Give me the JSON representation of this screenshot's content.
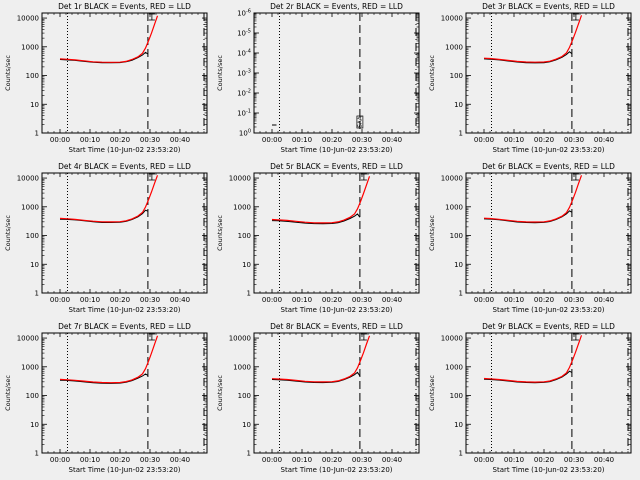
{
  "figure": {
    "background": "#efefef",
    "axis_color": "#000000",
    "events_color": "#000000",
    "lld_color": "#ff0000"
  },
  "chart_data": [
    {
      "type": "line",
      "panel": "det-1r",
      "title": "Det 1r BLACK = Events, RED = LLD",
      "xlabel": "Start Time (10-Jun-02 23:53:20)",
      "ylabel": "Counts/sec",
      "xticks": [
        "00:00",
        "00:10",
        "00:20",
        "00:30",
        "00:40"
      ],
      "yscale": "log",
      "ylim": [
        1,
        15000
      ],
      "yticks": [
        "1",
        "10",
        "100",
        "1000",
        "10000"
      ],
      "dotted_line_min": 2.5,
      "dash_line_min": 29.3,
      "dashdot_line_min": 48,
      "series": [
        {
          "name": "Events",
          "color": "#000000",
          "x": [
            0,
            2,
            5,
            8,
            11,
            14,
            17,
            20,
            22,
            24,
            26,
            27.5,
            28.5,
            29.3
          ],
          "y": [
            360,
            350,
            335,
            310,
            290,
            280,
            278,
            282,
            300,
            340,
            420,
            520,
            640,
            560
          ]
        },
        {
          "name": "LLD",
          "color": "#ff0000",
          "x": [
            0,
            2,
            5,
            8,
            11,
            14,
            17,
            20,
            22,
            24,
            26,
            27.5,
            28.5,
            29.5,
            30.5,
            31.5,
            32.5
          ],
          "y": [
            380,
            370,
            350,
            325,
            300,
            290,
            288,
            292,
            310,
            360,
            450,
            600,
            900,
            1600,
            3000,
            6000,
            12000
          ]
        }
      ]
    },
    {
      "type": "line",
      "panel": "det-2r",
      "title": "Det 2r BLACK = Events, RED = LLD",
      "xlabel": "Start Time (10-Jun-02 23:53:20)",
      "ylabel": "Counts/sec",
      "xticks": [
        "00:00",
        "00:10",
        "00:20",
        "00:30",
        "00:40"
      ],
      "yscale": "log",
      "ylim": [
        1,
        1000000
      ],
      "yticks": [
        "10^0",
        "10^-1",
        "10^-2",
        "10^-3",
        "10^-4",
        "10^-5",
        "10^-6"
      ],
      "dotted_line_min": 2.5,
      "dash_line_min": 29.3,
      "dashdot_line_min": 48,
      "annotations": [
        "SAA"
      ],
      "series": [
        {
          "name": "Events",
          "color": "#000000",
          "x": [
            0,
            1.5
          ],
          "y": [
            2.5,
            2.5
          ]
        }
      ]
    },
    {
      "type": "line",
      "panel": "det-3r",
      "title": "Det 3r BLACK = Events, RED = LLD",
      "xlabel": "Start Time (10-Jun-02 23:53:20)",
      "ylabel": "Counts/sec",
      "xticks": [
        "00:00",
        "00:10",
        "00:20",
        "00:30",
        "00:40"
      ],
      "yscale": "log",
      "ylim": [
        1,
        15000
      ],
      "yticks": [
        "1",
        "10",
        "100",
        "1000",
        "10000"
      ],
      "dotted_line_min": 2.5,
      "dash_line_min": 29.3,
      "dashdot_line_min": 48,
      "series": [
        {
          "name": "Events",
          "color": "#000000",
          "x": [
            0,
            2,
            5,
            8,
            11,
            14,
            17,
            20,
            22,
            24,
            26,
            27.5,
            28.5,
            29.3
          ],
          "y": [
            380,
            370,
            350,
            320,
            295,
            280,
            275,
            280,
            300,
            350,
            430,
            540,
            670,
            580
          ]
        },
        {
          "name": "LLD",
          "color": "#ff0000",
          "x": [
            0,
            2,
            5,
            8,
            11,
            14,
            17,
            20,
            22,
            24,
            26,
            27.5,
            28.5,
            29.5,
            30.5,
            31.5,
            32.5
          ],
          "y": [
            400,
            390,
            365,
            335,
            310,
            295,
            290,
            295,
            315,
            370,
            460,
            620,
            950,
            1700,
            3200,
            6300,
            12500
          ]
        }
      ]
    },
    {
      "type": "line",
      "panel": "det-4r",
      "title": "Det 4r BLACK = Events, RED = LLD",
      "xlabel": "Start Time (10-Jun-02 23:53:20)",
      "ylabel": "Counts/sec",
      "xticks": [
        "00:00",
        "00:10",
        "00:20",
        "00:30",
        "00:40"
      ],
      "yscale": "log",
      "ylim": [
        1,
        15000
      ],
      "yticks": [
        "1",
        "10",
        "100",
        "1000",
        "10000"
      ],
      "dotted_line_min": 2.5,
      "dash_line_min": 29.3,
      "dashdot_line_min": 48,
      "series": [
        {
          "name": "Events",
          "color": "#000000",
          "x": [
            0,
            2,
            5,
            8,
            11,
            14,
            17,
            20,
            22,
            24,
            26,
            27.5,
            28.5,
            29.3
          ],
          "y": [
            370,
            365,
            350,
            325,
            300,
            285,
            283,
            288,
            310,
            360,
            450,
            580,
            760,
            700
          ]
        },
        {
          "name": "LLD",
          "color": "#ff0000",
          "x": [
            0,
            2,
            5,
            8,
            11,
            14,
            17,
            20,
            22,
            24,
            26,
            27.5,
            28.5,
            29.5,
            30.5,
            31.5,
            32.5
          ],
          "y": [
            395,
            385,
            365,
            340,
            315,
            300,
            298,
            303,
            325,
            380,
            480,
            640,
            980,
            1750,
            3300,
            6500,
            12500
          ]
        }
      ]
    },
    {
      "type": "line",
      "panel": "det-5r",
      "title": "Det 5r BLACK = Events, RED = LLD",
      "xlabel": "Start Time (10-Jun-02 23:53:20)",
      "ylabel": "Counts/sec",
      "xticks": [
        "00:00",
        "00:10",
        "00:20",
        "00:30",
        "00:40"
      ],
      "yscale": "log",
      "ylim": [
        1,
        15000
      ],
      "yticks": [
        "1",
        "10",
        "100",
        "1000",
        "10000"
      ],
      "dotted_line_min": 2.5,
      "dash_line_min": 29.3,
      "dashdot_line_min": 48,
      "series": [
        {
          "name": "Events",
          "color": "#000000",
          "x": [
            0,
            2,
            5,
            8,
            11,
            14,
            17,
            20,
            22,
            24,
            26,
            27.5,
            28.5,
            29.3
          ],
          "y": [
            330,
            325,
            310,
            290,
            270,
            260,
            258,
            262,
            280,
            320,
            390,
            470,
            560,
            430
          ]
        },
        {
          "name": "LLD",
          "color": "#ff0000",
          "x": [
            0,
            2,
            5,
            8,
            11,
            14,
            17,
            20,
            22,
            24,
            26,
            27.5,
            28.5,
            29.5,
            30.5,
            31.5,
            32.5
          ],
          "y": [
            360,
            350,
            335,
            312,
            290,
            278,
            275,
            280,
            298,
            345,
            430,
            560,
            850,
            1500,
            2900,
            5800,
            11500
          ]
        }
      ]
    },
    {
      "type": "line",
      "panel": "det-6r",
      "title": "Det 6r BLACK = Events, RED = LLD",
      "xlabel": "Start Time (10-Jun-02 23:53:20)",
      "ylabel": "Counts/sec",
      "xticks": [
        "00:00",
        "00:10",
        "00:20",
        "00:30",
        "00:40"
      ],
      "yscale": "log",
      "ylim": [
        1,
        15000
      ],
      "yticks": [
        "1",
        "10",
        "100",
        "1000",
        "10000"
      ],
      "dotted_line_min": 2.5,
      "dash_line_min": 29.3,
      "dashdot_line_min": 48,
      "series": [
        {
          "name": "Events",
          "color": "#000000",
          "x": [
            0,
            2,
            5,
            8,
            11,
            14,
            17,
            20,
            22,
            24,
            26,
            27.5,
            28.5,
            29.3
          ],
          "y": [
            380,
            372,
            352,
            322,
            296,
            283,
            280,
            286,
            308,
            360,
            450,
            570,
            720,
            650
          ]
        },
        {
          "name": "LLD",
          "color": "#ff0000",
          "x": [
            0,
            2,
            5,
            8,
            11,
            14,
            17,
            20,
            22,
            24,
            26,
            27.5,
            28.5,
            29.5,
            30.5,
            31.5,
            32.5
          ],
          "y": [
            400,
            390,
            368,
            338,
            312,
            298,
            295,
            300,
            322,
            378,
            470,
            630,
            960,
            1700,
            3200,
            6400,
            12500
          ]
        }
      ]
    },
    {
      "type": "line",
      "panel": "det-7r",
      "title": "Det 7r BLACK = Events, RED = LLD",
      "xlabel": "Start Time (10-Jun-02 23:53:20)",
      "ylabel": "Counts/sec",
      "xticks": [
        "00:00",
        "00:10",
        "00:20",
        "00:30",
        "00:40"
      ],
      "yscale": "log",
      "ylim": [
        1,
        15000
      ],
      "yticks": [
        "1",
        "10",
        "100",
        "1000",
        "10000"
      ],
      "dotted_line_min": 2.5,
      "dash_line_min": 29.3,
      "dashdot_line_min": 48,
      "series": [
        {
          "name": "Events",
          "color": "#000000",
          "x": [
            0,
            2,
            5,
            8,
            11,
            14,
            17,
            20,
            22,
            24,
            26,
            27.5,
            28.5,
            29.3
          ],
          "y": [
            340,
            335,
            320,
            298,
            278,
            268,
            265,
            270,
            288,
            330,
            400,
            480,
            560,
            500
          ]
        },
        {
          "name": "LLD",
          "color": "#ff0000",
          "x": [
            0,
            2,
            5,
            8,
            11,
            14,
            17,
            20,
            22,
            24,
            26,
            27.5,
            28.5,
            29.5,
            30.5,
            31.5,
            32.5
          ],
          "y": [
            365,
            355,
            340,
            318,
            296,
            284,
            280,
            285,
            305,
            350,
            435,
            570,
            860,
            1550,
            3000,
            6000,
            12000
          ]
        }
      ]
    },
    {
      "type": "line",
      "panel": "det-8r",
      "title": "Det 8r BLACK = Events, RED = LLD",
      "xlabel": "Start Time (10-Jun-02 23:53:20)",
      "ylabel": "Counts/sec",
      "xticks": [
        "00:00",
        "00:10",
        "00:20",
        "00:30",
        "00:40"
      ],
      "yscale": "log",
      "ylim": [
        1,
        15000
      ],
      "yticks": [
        "1",
        "10",
        "100",
        "1000",
        "10000"
      ],
      "dotted_line_min": 2.5,
      "dash_line_min": 29.3,
      "dashdot_line_min": 48,
      "series": [
        {
          "name": "Events",
          "color": "#000000",
          "x": [
            0,
            2,
            5,
            8,
            11,
            14,
            17,
            20,
            22,
            24,
            26,
            27.5,
            28.5,
            29.3
          ],
          "y": [
            360,
            355,
            340,
            318,
            296,
            284,
            282,
            288,
            308,
            355,
            435,
            530,
            640,
            480
          ]
        },
        {
          "name": "LLD",
          "color": "#ff0000",
          "x": [
            0,
            2,
            5,
            8,
            11,
            14,
            17,
            20,
            22,
            24,
            26,
            27.5,
            28.5,
            29.5,
            30.5,
            31.5,
            32.5
          ],
          "y": [
            385,
            375,
            360,
            336,
            314,
            300,
            298,
            303,
            324,
            375,
            465,
            610,
            920,
            1650,
            3100,
            6200,
            12000
          ]
        }
      ]
    },
    {
      "type": "line",
      "panel": "det-9r",
      "title": "Det 9r BLACK = Events, RED = LLD",
      "xlabel": "Start Time (10-Jun-02 23:53:20)",
      "ylabel": "Counts/sec",
      "xticks": [
        "00:00",
        "00:10",
        "00:20",
        "00:30",
        "00:40"
      ],
      "yscale": "log",
      "ylim": [
        1,
        15000
      ],
      "yticks": [
        "1",
        "10",
        "100",
        "1000",
        "10000"
      ],
      "dotted_line_min": 2.5,
      "dash_line_min": 29.3,
      "dashdot_line_min": 48,
      "series": [
        {
          "name": "Events",
          "color": "#000000",
          "x": [
            0,
            2,
            5,
            8,
            11,
            14,
            17,
            20,
            22,
            24,
            26,
            27.5,
            28.5,
            29.3
          ],
          "y": [
            370,
            362,
            345,
            320,
            296,
            283,
            280,
            286,
            306,
            356,
            440,
            560,
            700,
            640
          ]
        },
        {
          "name": "LLD",
          "color": "#ff0000",
          "x": [
            0,
            2,
            5,
            8,
            11,
            14,
            17,
            20,
            22,
            24,
            26,
            27.5,
            28.5,
            29.5,
            30.5,
            31.5,
            32.5
          ],
          "y": [
            392,
            382,
            362,
            336,
            310,
            297,
            294,
            300,
            320,
            375,
            465,
            620,
            950,
            1700,
            3200,
            6300,
            12500
          ]
        }
      ]
    }
  ]
}
